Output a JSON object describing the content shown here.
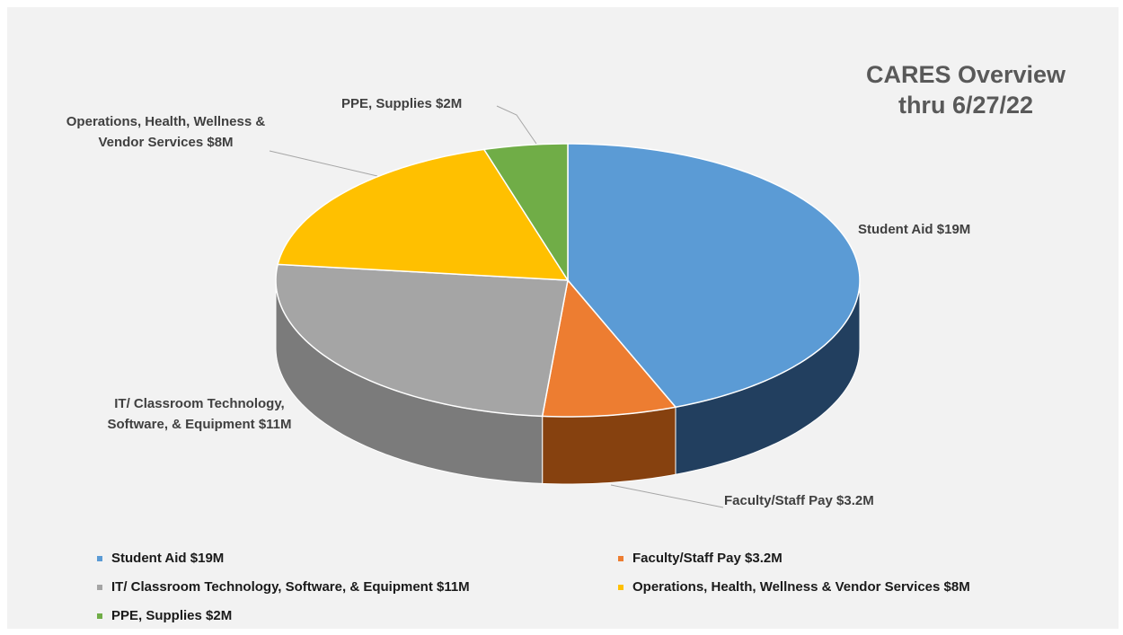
{
  "chart_data": {
    "type": "pie3d",
    "title": "CARES Overview thru 6/27/22",
    "categories": [
      "Student Aid $19M",
      "Faculty/Staff Pay $3.2M",
      "IT/ Classroom Technology, Software, & Equipment $11M",
      "Operations, Health, Wellness & Vendor Services $8M",
      "PPE, Supplies $2M"
    ],
    "values": [
      19,
      3.2,
      11,
      8,
      2
    ],
    "colors": [
      "#5b9bd5",
      "#ed7d31",
      "#a5a5a5",
      "#ffc000",
      "#70ad47"
    ],
    "side_colors": [
      "#223f5f",
      "#86410f",
      "#7b7b7b",
      "#b38600",
      "#4e7a31"
    ],
    "legend": "bottom"
  }
}
